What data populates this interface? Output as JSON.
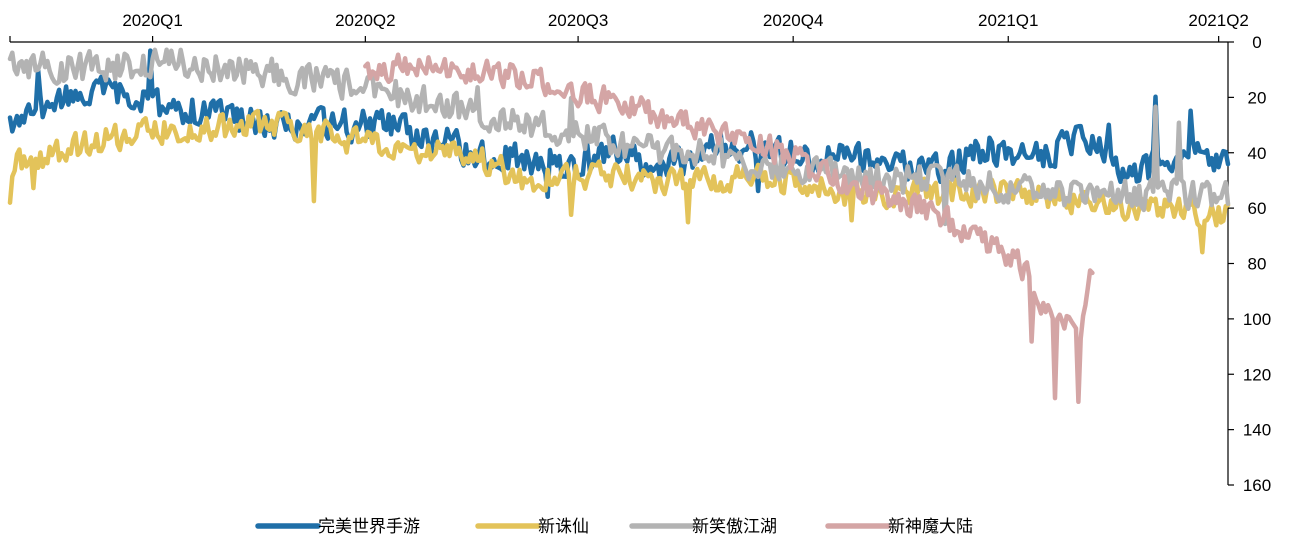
{
  "chart_data": {
    "type": "line",
    "title": "",
    "xlabel": "",
    "ylabel": "",
    "x_axis_position": "top",
    "y_axis_position": "right",
    "y_inverted": true,
    "ylim": [
      0,
      160
    ],
    "yticks": [
      0,
      20,
      40,
      60,
      80,
      100,
      120,
      140,
      160
    ],
    "x_ticks": [
      "2020Q1",
      "2020Q2",
      "2020Q3",
      "2020Q4",
      "2021Q1",
      "2021Q2"
    ],
    "grid": false,
    "legend_position": "bottom",
    "x_daily_range": [
      "2019-11-01",
      "2021-04-05"
    ],
    "series": [
      {
        "name": "完美世界手游",
        "color": "#1f6fa8",
        "start": "2019-11-01",
        "anchors": [
          [
            0,
            30
          ],
          [
            20,
            22
          ],
          [
            40,
            18
          ],
          [
            60,
            22
          ],
          [
            80,
            25
          ],
          [
            100,
            28
          ],
          [
            120,
            30
          ],
          [
            140,
            30
          ],
          [
            160,
            30
          ],
          [
            180,
            35
          ],
          [
            200,
            40
          ],
          [
            220,
            42
          ],
          [
            240,
            45
          ],
          [
            260,
            40
          ],
          [
            280,
            45
          ],
          [
            300,
            38
          ],
          [
            320,
            38
          ],
          [
            340,
            42
          ],
          [
            360,
            40
          ],
          [
            380,
            45
          ],
          [
            400,
            45
          ],
          [
            420,
            38
          ],
          [
            440,
            42
          ],
          [
            460,
            35
          ],
          [
            480,
            48
          ],
          [
            500,
            40
          ],
          [
            510,
            42
          ],
          [
            521,
            45
          ]
        ],
        "amp": 7,
        "spikes": [
          [
            12,
            -12
          ],
          [
            60,
            -15
          ],
          [
            180,
            10
          ],
          [
            230,
            12
          ],
          [
            320,
            15
          ],
          [
            470,
            -15
          ],
          [
            490,
            -18
          ],
          [
            505,
            -14
          ]
        ]
      },
      {
        "name": "新诛仙",
        "color": "#e3c35a",
        "start": "2019-11-01",
        "anchors": [
          [
            0,
            45
          ],
          [
            20,
            40
          ],
          [
            40,
            35
          ],
          [
            60,
            32
          ],
          [
            80,
            32
          ],
          [
            100,
            30
          ],
          [
            120,
            30
          ],
          [
            130,
            32
          ],
          [
            140,
            35
          ],
          [
            160,
            38
          ],
          [
            180,
            40
          ],
          [
            200,
            42
          ],
          [
            220,
            50
          ],
          [
            240,
            48
          ],
          [
            260,
            48
          ],
          [
            280,
            50
          ],
          [
            300,
            50
          ],
          [
            320,
            48
          ],
          [
            340,
            52
          ],
          [
            360,
            55
          ],
          [
            380,
            55
          ],
          [
            400,
            55
          ],
          [
            420,
            55
          ],
          [
            440,
            55
          ],
          [
            460,
            58
          ],
          [
            480,
            60
          ],
          [
            500,
            60
          ],
          [
            510,
            62
          ],
          [
            521,
            62
          ]
        ],
        "amp": 6,
        "spikes": [
          [
            0,
            15
          ],
          [
            10,
            12
          ],
          [
            130,
            28
          ],
          [
            240,
            15
          ],
          [
            290,
            15
          ],
          [
            360,
            10
          ],
          [
            510,
            15
          ]
        ]
      },
      {
        "name": "新笑傲江湖",
        "color": "#b3b3b3",
        "start": "2019-11-01",
        "anchors": [
          [
            0,
            8
          ],
          [
            20,
            10
          ],
          [
            40,
            9
          ],
          [
            60,
            8
          ],
          [
            80,
            8
          ],
          [
            100,
            10
          ],
          [
            120,
            12
          ],
          [
            140,
            15
          ],
          [
            160,
            18
          ],
          [
            180,
            22
          ],
          [
            200,
            25
          ],
          [
            220,
            30
          ],
          [
            240,
            32
          ],
          [
            260,
            38
          ],
          [
            280,
            40
          ],
          [
            300,
            40
          ],
          [
            320,
            45
          ],
          [
            340,
            45
          ],
          [
            360,
            48
          ],
          [
            380,
            50
          ],
          [
            400,
            50
          ],
          [
            420,
            52
          ],
          [
            440,
            55
          ],
          [
            460,
            55
          ],
          [
            480,
            55
          ],
          [
            500,
            55
          ],
          [
            510,
            55
          ],
          [
            521,
            55
          ]
        ],
        "amp": 7,
        "spikes": [
          [
            200,
            -10
          ],
          [
            240,
            -15
          ],
          [
            400,
            15
          ],
          [
            490,
            -30
          ],
          [
            500,
            -25
          ]
        ]
      },
      {
        "name": "新神魔大陆",
        "color": "#d4a5a5",
        "start": "2020-04-01",
        "anchors": [
          [
            0,
            10
          ],
          [
            20,
            8
          ],
          [
            40,
            10
          ],
          [
            60,
            12
          ],
          [
            80,
            15
          ],
          [
            100,
            20
          ],
          [
            120,
            25
          ],
          [
            140,
            30
          ],
          [
            160,
            35
          ],
          [
            180,
            40
          ],
          [
            200,
            50
          ],
          [
            220,
            55
          ],
          [
            240,
            60
          ],
          [
            260,
            70
          ],
          [
            280,
            80
          ],
          [
            290,
            95
          ],
          [
            300,
            100
          ],
          [
            306,
            105
          ],
          [
            311,
            80
          ]
        ],
        "amp": 6,
        "spikes": [
          [
            285,
            20
          ],
          [
            295,
            30
          ],
          [
            305,
            30
          ]
        ]
      }
    ]
  }
}
